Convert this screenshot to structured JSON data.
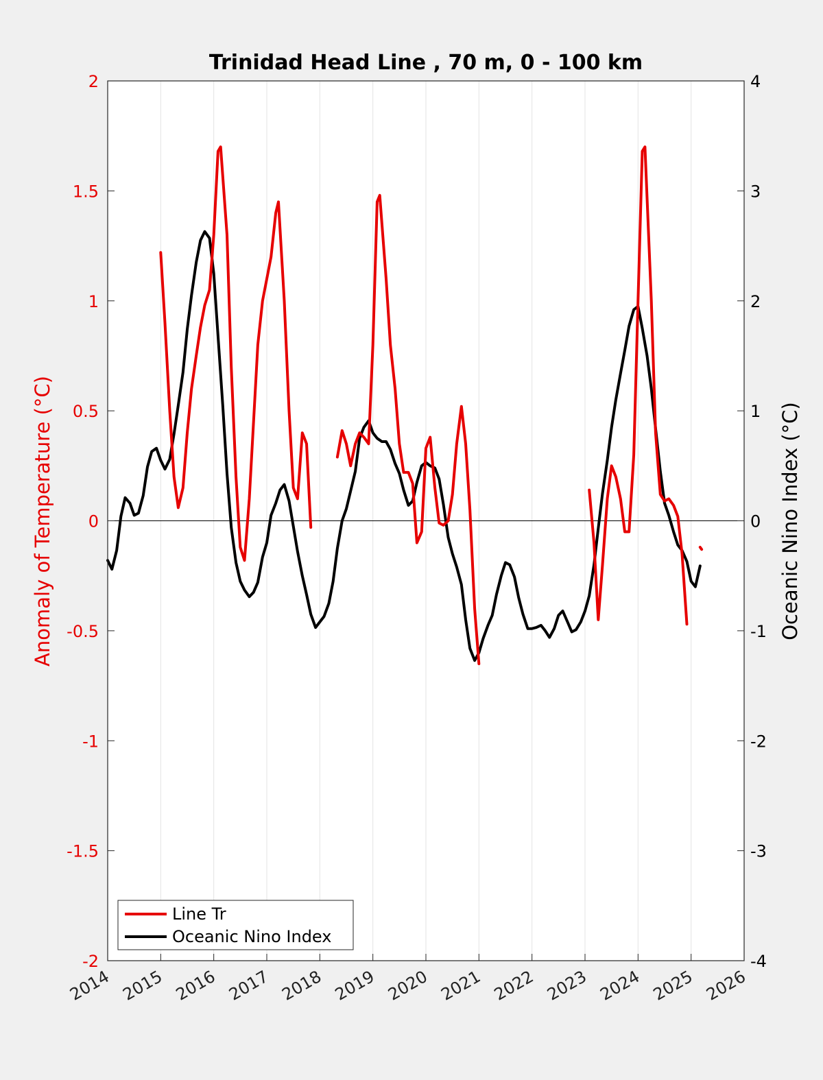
{
  "chart_data": {
    "type": "line",
    "title": "Trinidad Head Line , 70 m, 0 - 100 km",
    "ylabel_left": "Anomaly of Temperature (°C)",
    "ylabel_right": "Oceanic Nino Index (°C)",
    "xlim": [
      2014,
      2026
    ],
    "ylim_left": [
      -2,
      2
    ],
    "ylim_right": [
      -4,
      4
    ],
    "xticks": [
      "2014",
      "2015",
      "2016",
      "2017",
      "2018",
      "2019",
      "2020",
      "2021",
      "2022",
      "2023",
      "2024",
      "2025",
      "2026"
    ],
    "yticks_left": [
      "2",
      "1.5",
      "1",
      "0.5",
      "0",
      "-0.5",
      "-1",
      "-1.5",
      "-2"
    ],
    "yticks_right": [
      "4",
      "3",
      "2",
      "1",
      "0",
      "-1",
      "-2",
      "-3",
      "-4"
    ],
    "grid": "vertical lines at x ticks",
    "legend_position": "bottom-left",
    "colors": {
      "line_tr": "#e60000",
      "oni": "#000000",
      "left_axis": "#e60000"
    },
    "series": [
      {
        "name": "Line Tr",
        "axis": "left",
        "segments": [
          [
            [
              2015.0,
              1.22
            ],
            [
              2015.08,
              0.9
            ],
            [
              2015.17,
              0.5
            ],
            [
              2015.25,
              0.2
            ],
            [
              2015.33,
              0.06
            ],
            [
              2015.42,
              0.15
            ],
            [
              2015.5,
              0.4
            ],
            [
              2015.58,
              0.6
            ],
            [
              2015.67,
              0.75
            ],
            [
              2015.75,
              0.88
            ],
            [
              2015.83,
              0.98
            ],
            [
              2015.92,
              1.05
            ],
            [
              2016.0,
              1.3
            ],
            [
              2016.08,
              1.68
            ],
            [
              2016.13,
              1.7
            ],
            [
              2016.25,
              1.3
            ],
            [
              2016.33,
              0.7
            ],
            [
              2016.42,
              0.2
            ],
            [
              2016.5,
              -0.12
            ],
            [
              2016.58,
              -0.18
            ],
            [
              2016.67,
              0.1
            ],
            [
              2016.75,
              0.45
            ],
            [
              2016.83,
              0.8
            ],
            [
              2016.92,
              1.0
            ],
            [
              2017.0,
              1.1
            ],
            [
              2017.08,
              1.2
            ],
            [
              2017.17,
              1.4
            ],
            [
              2017.22,
              1.45
            ],
            [
              2017.33,
              1.0
            ],
            [
              2017.42,
              0.5
            ],
            [
              2017.5,
              0.15
            ],
            [
              2017.58,
              0.1
            ],
            [
              2017.67,
              0.4
            ],
            [
              2017.75,
              0.35
            ],
            [
              2017.83,
              -0.03
            ]
          ],
          [
            [
              2018.33,
              0.29
            ],
            [
              2018.42,
              0.41
            ],
            [
              2018.5,
              0.35
            ],
            [
              2018.58,
              0.25
            ],
            [
              2018.67,
              0.35
            ],
            [
              2018.75,
              0.4
            ],
            [
              2018.83,
              0.38
            ],
            [
              2018.92,
              0.35
            ],
            [
              2019.0,
              0.8
            ],
            [
              2019.08,
              1.45
            ],
            [
              2019.13,
              1.48
            ],
            [
              2019.25,
              1.1
            ],
            [
              2019.33,
              0.8
            ],
            [
              2019.42,
              0.6
            ],
            [
              2019.5,
              0.35
            ],
            [
              2019.58,
              0.22
            ],
            [
              2019.67,
              0.22
            ],
            [
              2019.75,
              0.17
            ],
            [
              2019.83,
              -0.1
            ],
            [
              2019.92,
              -0.05
            ],
            [
              2020.0,
              0.33
            ],
            [
              2020.08,
              0.38
            ],
            [
              2020.17,
              0.15
            ],
            [
              2020.25,
              -0.01
            ],
            [
              2020.33,
              -0.02
            ],
            [
              2020.42,
              0.0
            ],
            [
              2020.5,
              0.12
            ],
            [
              2020.58,
              0.35
            ],
            [
              2020.67,
              0.52
            ],
            [
              2020.75,
              0.35
            ],
            [
              2020.83,
              0.05
            ],
            [
              2020.92,
              -0.4
            ],
            [
              2021.0,
              -0.65
            ]
          ],
          [
            [
              2023.08,
              0.14
            ],
            [
              2023.17,
              -0.1
            ],
            [
              2023.25,
              -0.45
            ],
            [
              2023.33,
              -0.2
            ],
            [
              2023.42,
              0.1
            ],
            [
              2023.5,
              0.25
            ],
            [
              2023.58,
              0.2
            ],
            [
              2023.67,
              0.1
            ],
            [
              2023.75,
              -0.05
            ],
            [
              2023.83,
              -0.05
            ],
            [
              2023.92,
              0.3
            ],
            [
              2024.0,
              1.0
            ],
            [
              2024.08,
              1.68
            ],
            [
              2024.13,
              1.7
            ],
            [
              2024.25,
              1.0
            ],
            [
              2024.33,
              0.4
            ],
            [
              2024.42,
              0.12
            ],
            [
              2024.5,
              0.09
            ],
            [
              2024.58,
              0.1
            ],
            [
              2024.67,
              0.07
            ],
            [
              2024.75,
              0.02
            ],
            [
              2024.83,
              -0.15
            ],
            [
              2024.92,
              -0.47
            ]
          ],
          [
            [
              2025.17,
              -0.12
            ],
            [
              2025.2,
              -0.13
            ]
          ]
        ]
      },
      {
        "name": "Oceanic Nino Index",
        "axis": "right",
        "segments": [
          [
            [
              2014.0,
              -0.36
            ],
            [
              2014.08,
              -0.44
            ],
            [
              2014.17,
              -0.27
            ],
            [
              2014.25,
              0.04
            ],
            [
              2014.33,
              0.21
            ],
            [
              2014.42,
              0.16
            ],
            [
              2014.5,
              0.05
            ],
            [
              2014.58,
              0.07
            ],
            [
              2014.67,
              0.23
            ],
            [
              2014.75,
              0.49
            ],
            [
              2014.83,
              0.63
            ],
            [
              2014.92,
              0.66
            ],
            [
              2015.0,
              0.55
            ],
            [
              2015.08,
              0.47
            ],
            [
              2015.17,
              0.56
            ],
            [
              2015.25,
              0.79
            ],
            [
              2015.33,
              1.05
            ],
            [
              2015.42,
              1.35
            ],
            [
              2015.5,
              1.74
            ],
            [
              2015.58,
              2.05
            ],
            [
              2015.67,
              2.35
            ],
            [
              2015.75,
              2.55
            ],
            [
              2015.83,
              2.63
            ],
            [
              2015.92,
              2.57
            ],
            [
              2016.0,
              2.25
            ],
            [
              2016.08,
              1.68
            ],
            [
              2016.17,
              1.05
            ],
            [
              2016.25,
              0.43
            ],
            [
              2016.33,
              -0.06
            ],
            [
              2016.42,
              -0.38
            ],
            [
              2016.5,
              -0.55
            ],
            [
              2016.58,
              -0.63
            ],
            [
              2016.67,
              -0.69
            ],
            [
              2016.75,
              -0.65
            ],
            [
              2016.83,
              -0.56
            ],
            [
              2016.92,
              -0.33
            ],
            [
              2017.0,
              -0.2
            ],
            [
              2017.08,
              0.05
            ],
            [
              2017.17,
              0.16
            ],
            [
              2017.25,
              0.28
            ],
            [
              2017.33,
              0.33
            ],
            [
              2017.42,
              0.18
            ],
            [
              2017.5,
              -0.05
            ],
            [
              2017.58,
              -0.28
            ],
            [
              2017.67,
              -0.5
            ],
            [
              2017.75,
              -0.67
            ],
            [
              2017.83,
              -0.85
            ],
            [
              2017.92,
              -0.97
            ],
            [
              2018.0,
              -0.92
            ],
            [
              2018.08,
              -0.87
            ],
            [
              2018.17,
              -0.75
            ],
            [
              2018.25,
              -0.55
            ],
            [
              2018.33,
              -0.25
            ],
            [
              2018.42,
              0.0
            ],
            [
              2018.5,
              0.11
            ],
            [
              2018.58,
              0.27
            ],
            [
              2018.67,
              0.45
            ],
            [
              2018.75,
              0.75
            ],
            [
              2018.83,
              0.85
            ],
            [
              2018.92,
              0.91
            ],
            [
              2019.0,
              0.8
            ],
            [
              2019.08,
              0.75
            ],
            [
              2019.17,
              0.72
            ],
            [
              2019.25,
              0.72
            ],
            [
              2019.33,
              0.65
            ],
            [
              2019.42,
              0.52
            ],
            [
              2019.5,
              0.43
            ],
            [
              2019.58,
              0.28
            ],
            [
              2019.67,
              0.14
            ],
            [
              2019.75,
              0.18
            ],
            [
              2019.83,
              0.35
            ],
            [
              2019.92,
              0.5
            ],
            [
              2020.0,
              0.53
            ],
            [
              2020.08,
              0.5
            ],
            [
              2020.17,
              0.48
            ],
            [
              2020.25,
              0.38
            ],
            [
              2020.33,
              0.15
            ],
            [
              2020.42,
              -0.15
            ],
            [
              2020.5,
              -0.3
            ],
            [
              2020.58,
              -0.42
            ],
            [
              2020.67,
              -0.58
            ],
            [
              2020.75,
              -0.9
            ],
            [
              2020.83,
              -1.16
            ],
            [
              2020.92,
              -1.27
            ],
            [
              2021.0,
              -1.2
            ],
            [
              2021.08,
              -1.07
            ],
            [
              2021.17,
              -0.95
            ],
            [
              2021.25,
              -0.86
            ],
            [
              2021.33,
              -0.67
            ],
            [
              2021.42,
              -0.5
            ],
            [
              2021.5,
              -0.38
            ],
            [
              2021.58,
              -0.4
            ],
            [
              2021.67,
              -0.51
            ],
            [
              2021.75,
              -0.7
            ],
            [
              2021.83,
              -0.85
            ],
            [
              2021.92,
              -0.98
            ],
            [
              2022.0,
              -0.98
            ],
            [
              2022.08,
              -0.97
            ],
            [
              2022.17,
              -0.95
            ],
            [
              2022.25,
              -1.0
            ],
            [
              2022.33,
              -1.06
            ],
            [
              2022.42,
              -0.98
            ],
            [
              2022.5,
              -0.86
            ],
            [
              2022.58,
              -0.82
            ],
            [
              2022.67,
              -0.92
            ],
            [
              2022.75,
              -1.01
            ],
            [
              2022.83,
              -0.99
            ],
            [
              2022.92,
              -0.92
            ],
            [
              2023.0,
              -0.82
            ],
            [
              2023.08,
              -0.68
            ],
            [
              2023.17,
              -0.4
            ],
            [
              2023.25,
              -0.07
            ],
            [
              2023.33,
              0.25
            ],
            [
              2023.42,
              0.55
            ],
            [
              2023.5,
              0.85
            ],
            [
              2023.58,
              1.1
            ],
            [
              2023.67,
              1.34
            ],
            [
              2023.75,
              1.55
            ],
            [
              2023.83,
              1.77
            ],
            [
              2023.92,
              1.92
            ],
            [
              2024.0,
              1.95
            ],
            [
              2024.08,
              1.75
            ],
            [
              2024.17,
              1.5
            ],
            [
              2024.25,
              1.2
            ],
            [
              2024.33,
              0.84
            ],
            [
              2024.42,
              0.45
            ],
            [
              2024.5,
              0.16
            ],
            [
              2024.58,
              0.05
            ],
            [
              2024.67,
              -0.1
            ],
            [
              2024.75,
              -0.22
            ],
            [
              2024.83,
              -0.27
            ],
            [
              2024.92,
              -0.37
            ],
            [
              2025.0,
              -0.55
            ],
            [
              2025.08,
              -0.6
            ],
            [
              2025.17,
              -0.41
            ]
          ]
        ]
      }
    ]
  }
}
